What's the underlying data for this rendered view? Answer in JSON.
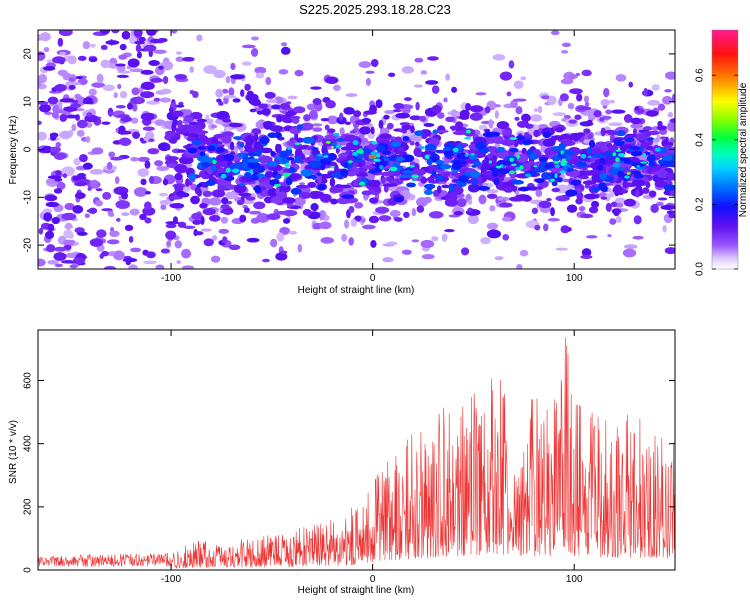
{
  "title": "S225.2025.293.18.28.C23",
  "chart_data": [
    {
      "type": "heatmap",
      "title": "S225.2025.293.18.28.C23",
      "xlabel": "Height of straight line (km)",
      "ylabel": "Frequency (Hz)",
      "xlim": [
        -166,
        150
      ],
      "ylim": [
        -25,
        25
      ],
      "x_ticks": [
        -100,
        0,
        100
      ],
      "x_tick_labels": [
        "-100",
        "0",
        "100"
      ],
      "y_ticks": [
        -20,
        -10,
        0,
        10,
        20
      ],
      "y_tick_labels": [
        "-20",
        "-10",
        "0",
        "10",
        "20"
      ],
      "colorbar": {
        "label": "Normalized spectral amplitude",
        "range": [
          0.0,
          0.74
        ],
        "ticks": [
          0.0,
          0.2,
          0.4,
          0.6
        ],
        "tick_labels": [
          "0.0",
          "0.2",
          "0.4",
          "0.6"
        ]
      },
      "description_of_field": "Dense blob field; high amplitude band near 0 Hz from about -90 km to 150 km, widely scattered low amplitude on the left",
      "grid": false
    },
    {
      "type": "line",
      "xlabel": "Height of straight line (km)",
      "ylabel": "SNR (10 * v/v)",
      "xlim": [
        -166,
        150
      ],
      "ylim": [
        0,
        760
      ],
      "x_ticks": [
        -100,
        0,
        100
      ],
      "x_tick_labels": [
        "-100",
        "0",
        "100"
      ],
      "y_ticks": [
        0,
        200,
        400,
        600
      ],
      "y_tick_labels": [
        "0",
        "200",
        "400",
        "600"
      ],
      "color": "#ee3333",
      "envelope": {
        "x": [
          -166,
          -100,
          -90,
          -60,
          -40,
          -20,
          -5,
          5,
          15,
          25,
          35,
          50,
          60,
          70,
          80,
          90,
          95,
          100,
          110,
          120,
          130,
          140,
          150
        ],
        "max": [
          45,
          55,
          90,
          100,
          130,
          160,
          220,
          340,
          420,
          460,
          520,
          560,
          620,
          580,
          560,
          540,
          760,
          560,
          500,
          480,
          500,
          460,
          440
        ]
      },
      "grid": false
    }
  ]
}
